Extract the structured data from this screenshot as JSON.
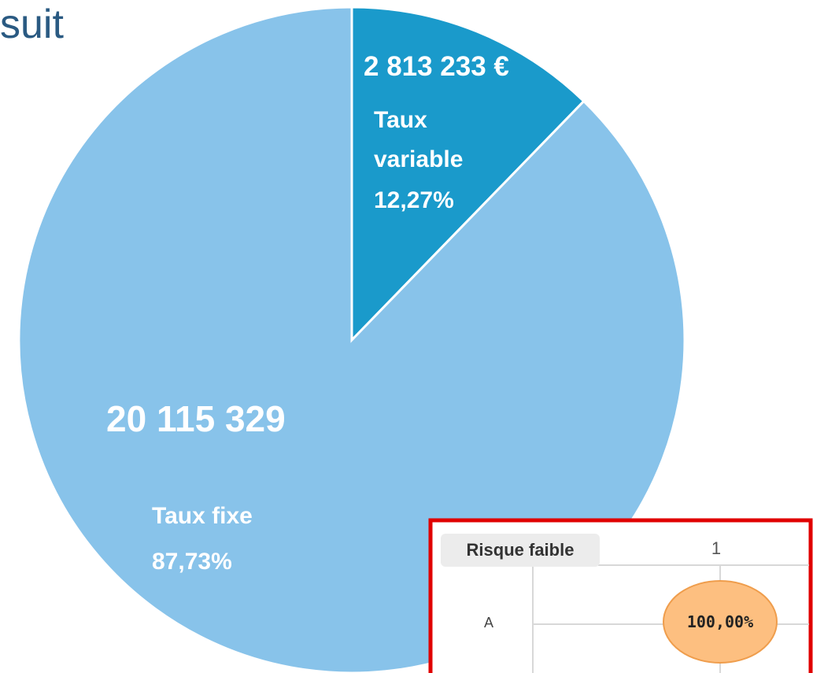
{
  "chart_data": {
    "type": "pie",
    "title": "suit",
    "categories": [
      "Taux variable",
      "Taux fixe"
    ],
    "values": [
      12.27,
      87.73
    ],
    "value_labels": [
      "12,27%",
      "87,73%"
    ],
    "amounts": [
      2813233,
      20115329
    ],
    "amount_labels": [
      "2 813 233 €",
      "20 115 329"
    ],
    "colors": [
      "#1a9acb",
      "#88c3ea"
    ]
  },
  "inset": {
    "header": "Risque faible",
    "column": "1",
    "row": "A",
    "cell": "100,00%"
  }
}
